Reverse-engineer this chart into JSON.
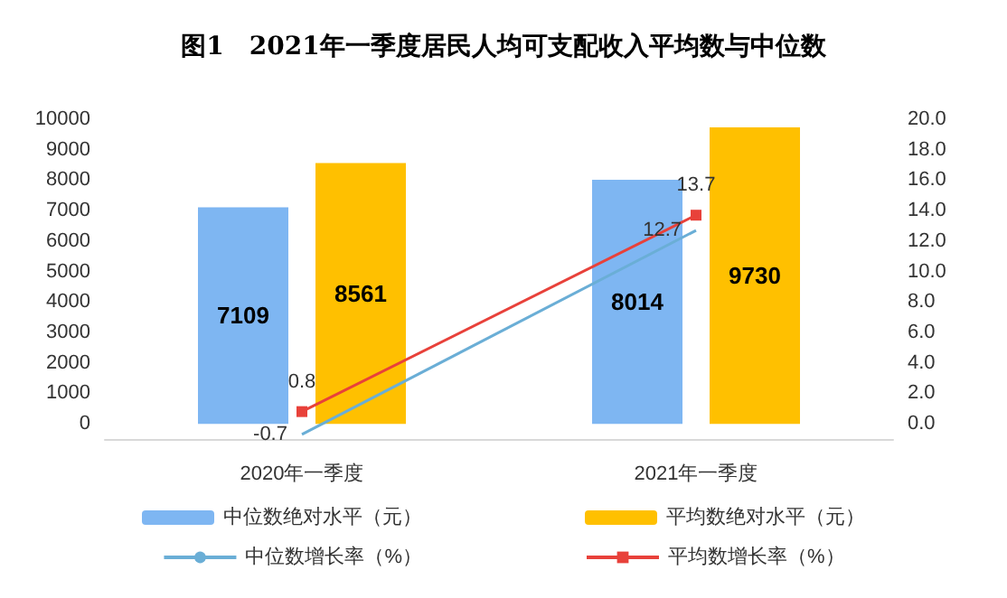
{
  "chart_data": {
    "type": "bar",
    "title": "图1　2021年一季度居民人均可支配收入平均数与中位数",
    "categories": [
      "2020年一季度",
      "2021年一季度"
    ],
    "series": [
      {
        "name": "中位数绝对水平（元）",
        "color": "#7eb6f2",
        "values": [
          7109,
          8014
        ]
      },
      {
        "name": "平均数绝对水平（元）",
        "color": "#ffc000",
        "values": [
          8561,
          9730
        ]
      },
      {
        "name": "中位数增长率（%）",
        "type": "line",
        "axis": "y2",
        "color": "#6aaed6",
        "marker": "none",
        "values": [
          -0.7,
          12.7
        ]
      },
      {
        "name": "平均数增长率（%）",
        "type": "line",
        "axis": "y2",
        "color": "#e8413a",
        "marker": "square",
        "values": [
          0.8,
          13.7
        ]
      }
    ],
    "ylim": [
      -500,
      10000
    ],
    "yticks": [
      0,
      1000,
      2000,
      3000,
      4000,
      5000,
      6000,
      7000,
      8000,
      9000,
      10000
    ],
    "y2lim": [
      -1,
      20
    ],
    "y2ticks": [
      {
        "value": 0,
        "label": "0.0"
      },
      {
        "value": 2,
        "label": "2.0"
      },
      {
        "value": 4,
        "label": "4.0"
      },
      {
        "value": 6,
        "label": "6.0"
      },
      {
        "value": 8,
        "label": "8.0"
      },
      {
        "value": 10,
        "label": "10.0"
      },
      {
        "value": 12,
        "label": "12.0"
      },
      {
        "value": 14,
        "label": "14.0"
      },
      {
        "value": 16,
        "label": "16.0"
      },
      {
        "value": 18,
        "label": "18.0"
      },
      {
        "value": 20,
        "label": "20.0"
      }
    ],
    "grid": false,
    "legend": "bottom",
    "data_labels": true
  }
}
